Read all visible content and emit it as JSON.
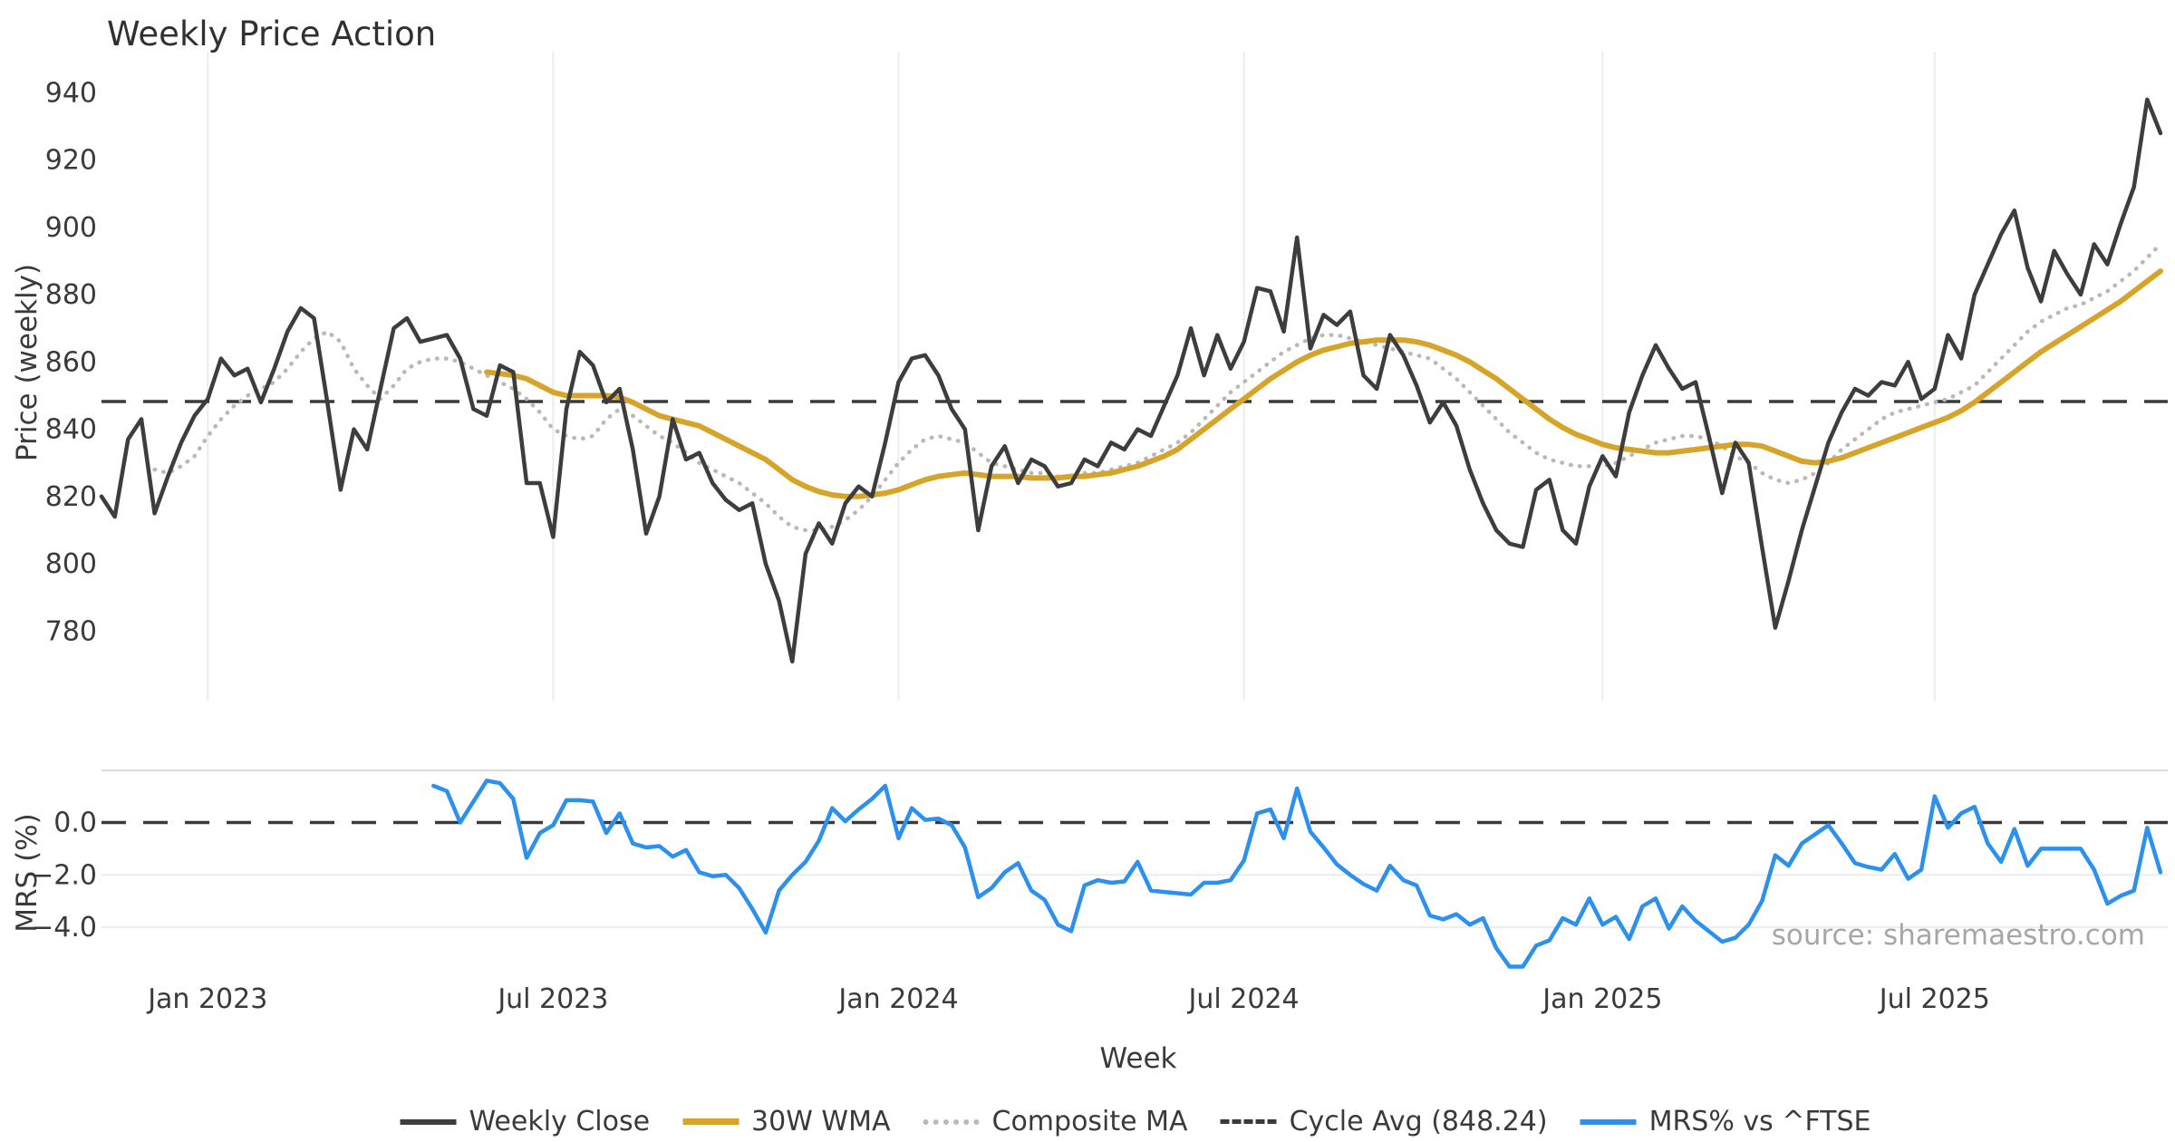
{
  "title": "Weekly Price Action",
  "source_note": "source: sharemaestro.com",
  "colors": {
    "close": "#3d3d3d",
    "wma": "#d7a42a",
    "composite": "#b9b9b9",
    "cycle_avg": "#3a3a3a",
    "mrs": "#2b90ee",
    "gridline": "#ececf1",
    "panel_border": "#d9d9e0",
    "text": "#3a3a3a",
    "source_text": "#a6a6a6"
  },
  "legend": {
    "items": [
      {
        "label": "Weekly Close",
        "swatch": "solid-close"
      },
      {
        "label": "30W WMA",
        "swatch": "solid-wma"
      },
      {
        "label": "Composite MA",
        "swatch": "dotted"
      },
      {
        "label": "Cycle Avg (848.24)",
        "swatch": "dashed"
      },
      {
        "label": "MRS% vs ^FTSE",
        "swatch": "solid-mrs"
      }
    ]
  },
  "chart_data": [
    {
      "type": "line",
      "panel": "price",
      "title": "Weekly Price Action",
      "xlabel": "Week",
      "ylabel": "Price (weekly)",
      "ylim": [
        768,
        948
      ],
      "yticks": [
        940,
        920,
        900,
        880,
        860,
        840,
        820,
        800,
        780
      ],
      "x_ticks": [
        {
          "week": 8,
          "label": "Jan 2023"
        },
        {
          "week": 34,
          "label": "Jul 2023"
        },
        {
          "week": 60,
          "label": "Jan 2024"
        },
        {
          "week": 86,
          "label": "Jul 2024"
        },
        {
          "week": 113,
          "label": "Jan 2025"
        },
        {
          "week": 138,
          "label": "Jul 2025"
        }
      ],
      "x_range_weeks": [
        0,
        155
      ],
      "cycle_avg": 848.24,
      "grid": "vertical-only",
      "series": [
        {
          "name": "Weekly Close",
          "style": "solid",
          "color_key": "close",
          "start_week": 0,
          "values": [
            820,
            814,
            837,
            843,
            815,
            826,
            836,
            844,
            849,
            861,
            856,
            858,
            848,
            858,
            869,
            876,
            873,
            848,
            822,
            840,
            834,
            852,
            870,
            873,
            866,
            867,
            868,
            861,
            846,
            844,
            859,
            857,
            824,
            824,
            808,
            846,
            863,
            859,
            848,
            852,
            834,
            809,
            820,
            843,
            831,
            833,
            824,
            819,
            816,
            818,
            800,
            789,
            771,
            803,
            812,
            806,
            818,
            823,
            820,
            836,
            854,
            861,
            862,
            856,
            846,
            840,
            810,
            829,
            835,
            824,
            831,
            829,
            823,
            824,
            831,
            829,
            836,
            834,
            840,
            838,
            847,
            856,
            870,
            856,
            868,
            858,
            866,
            882,
            881,
            869,
            897,
            864,
            874,
            871,
            875,
            856,
            852,
            868,
            862,
            853,
            842,
            848,
            841,
            828,
            818,
            810,
            806,
            805,
            822,
            825,
            810,
            806,
            823,
            832,
            826,
            845,
            856,
            865,
            858,
            852,
            854,
            838,
            821,
            836,
            830,
            805,
            781,
            795,
            810,
            823,
            836,
            845,
            852,
            850,
            854,
            853,
            860,
            849,
            852,
            868,
            861,
            880,
            889,
            898,
            905,
            888,
            878,
            893,
            886,
            880,
            895,
            889,
            901,
            912,
            938,
            928
          ]
        },
        {
          "name": "30W WMA",
          "style": "solid",
          "color_key": "wma",
          "start_week": 29,
          "values": [
            857,
            856.5,
            856,
            855,
            853,
            851,
            850,
            850,
            850,
            850,
            849.5,
            848,
            846,
            844,
            843,
            842,
            841,
            839,
            837,
            835,
            833,
            831,
            828,
            825,
            823,
            821.5,
            820.5,
            820,
            820,
            820.5,
            821,
            822,
            823.5,
            825,
            826,
            826.5,
            827,
            826.5,
            826,
            826,
            826,
            825.5,
            825.5,
            825.5,
            826,
            826,
            826.5,
            827,
            828,
            829,
            830.5,
            832,
            834,
            837,
            840,
            843,
            846,
            849,
            852,
            855,
            857.5,
            860,
            862,
            863.5,
            864.5,
            865.5,
            866,
            866.5,
            866.5,
            866.5,
            866,
            865,
            863.5,
            862,
            860,
            857.5,
            855,
            852,
            849,
            846,
            843,
            840.5,
            838.5,
            837,
            835.5,
            834.5,
            834,
            833.5,
            833,
            833,
            833.5,
            834,
            834.5,
            835,
            835.5,
            835.5,
            835,
            833.5,
            832,
            830.5,
            830,
            830.5,
            831.5,
            833,
            834.5,
            836,
            837.5,
            839,
            840.5,
            842,
            843.5,
            845.5,
            848,
            851,
            854,
            857,
            860,
            863,
            865.5,
            868,
            870.5,
            873,
            875.5,
            878,
            881,
            884,
            887
          ]
        },
        {
          "name": "Composite MA",
          "style": "dotted",
          "color_key": "composite",
          "start_week": 4,
          "values": [
            828,
            827,
            829,
            832,
            838,
            843,
            847,
            850,
            852,
            854,
            858,
            863,
            867,
            869,
            866,
            858,
            853,
            849,
            853,
            858,
            860,
            861,
            861,
            860,
            858,
            856,
            854,
            852,
            849,
            845,
            840,
            838,
            837,
            838,
            843,
            846,
            844,
            841,
            838,
            836,
            833,
            830,
            828,
            826,
            824,
            821,
            818,
            814,
            811,
            810,
            810,
            811,
            813,
            816,
            820,
            825,
            830,
            834,
            837,
            838,
            837,
            836,
            833,
            830,
            829,
            828,
            827,
            827,
            826,
            826,
            827,
            827,
            828,
            829,
            830,
            832,
            834,
            836,
            839,
            843,
            847,
            851,
            854,
            857,
            860,
            863,
            865,
            867,
            868,
            868,
            867,
            866,
            865,
            864,
            863,
            862,
            861,
            858,
            855,
            851,
            847,
            843,
            839,
            836,
            833,
            831,
            830,
            829,
            829,
            829,
            830,
            832,
            834,
            836,
            837,
            838,
            838,
            837,
            835,
            832,
            830,
            827,
            825,
            824,
            825,
            827,
            830,
            834,
            837,
            840,
            843,
            845,
            846,
            847,
            848,
            849,
            851,
            853,
            857,
            861,
            865,
            869,
            872,
            874,
            876,
            877,
            879,
            881,
            884,
            887,
            891,
            895
          ]
        },
        {
          "name": "Cycle Avg (848.24)",
          "style": "dashed",
          "color_key": "cycle_avg",
          "line_at": 848.24
        }
      ]
    },
    {
      "type": "line",
      "panel": "mrs",
      "ylabel": "MRS (%)",
      "ylim": [
        -5.9,
        2.0
      ],
      "yticks": [
        0.0,
        -2.0,
        -4.0
      ],
      "ytick_labels": [
        "0.0",
        "−2.0",
        "−4.0"
      ],
      "zero_dashed_line": true,
      "grid": "horizontal-only",
      "series": [
        {
          "name": "MRS% vs ^FTSE",
          "style": "solid",
          "color_key": "mrs",
          "start_week": 25,
          "values": [
            1.4,
            1.2,
            0.0,
            0.8,
            1.6,
            1.5,
            0.9,
            -1.35,
            -0.4,
            -0.1,
            0.85,
            0.85,
            0.8,
            -0.4,
            0.35,
            -0.8,
            -0.95,
            -0.9,
            -1.3,
            -1.05,
            -1.9,
            -2.05,
            -2.0,
            -2.5,
            -3.3,
            -4.2,
            -2.6,
            -2.0,
            -1.5,
            -0.7,
            0.55,
            0.05,
            0.5,
            0.9,
            1.4,
            -0.6,
            0.55,
            0.1,
            0.15,
            -0.1,
            -0.95,
            -2.85,
            -2.5,
            -1.9,
            -1.55,
            -2.6,
            -2.95,
            -3.9,
            -4.15,
            -2.4,
            -2.2,
            -2.3,
            -2.25,
            -1.5,
            -2.6,
            -2.65,
            -2.7,
            -2.75,
            -2.3,
            -2.3,
            -2.2,
            -1.45,
            0.35,
            0.5,
            -0.6,
            1.3,
            -0.35,
            -0.95,
            -1.6,
            -2.0,
            -2.35,
            -2.6,
            -1.65,
            -2.2,
            -2.4,
            -3.55,
            -3.7,
            -3.5,
            -3.9,
            -3.65,
            -4.8,
            -5.5,
            -5.5,
            -4.7,
            -4.5,
            -3.65,
            -3.9,
            -2.9,
            -3.9,
            -3.6,
            -4.45,
            -3.2,
            -2.9,
            -4.05,
            -3.2,
            -3.75,
            -4.15,
            -4.55,
            -4.4,
            -3.9,
            -3.0,
            -1.25,
            -1.65,
            -0.8,
            -0.45,
            -0.1,
            -0.8,
            -1.55,
            -1.7,
            -1.8,
            -1.2,
            -2.15,
            -1.8,
            1.0,
            -0.2,
            0.35,
            0.6,
            -0.8,
            -1.5,
            -0.25,
            -1.65,
            -1.0,
            -1.0,
            -1.0,
            -1.0,
            -1.8,
            -3.1,
            -2.8,
            -2.6,
            -0.2,
            -1.9
          ]
        }
      ]
    }
  ]
}
